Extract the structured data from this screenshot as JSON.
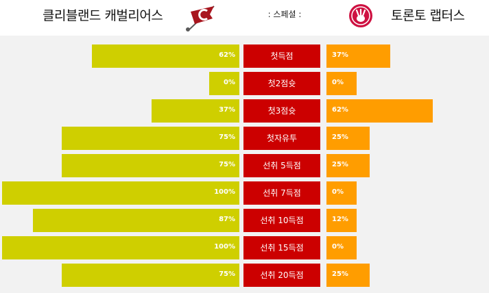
{
  "header": {
    "home_team": "클리블랜드 캐벌리어스",
    "away_team": "토론토 랩터스",
    "mid_label": ": 스페셜 :"
  },
  "colors": {
    "home_bar": "#cfcf00",
    "away_bar": "#ff9d00",
    "label_bg": "#cc0000"
  },
  "rows": [
    {
      "label": "첫득점",
      "home_pct": "62%",
      "away_pct": "37%",
      "home_value": 62,
      "away_value": 37
    },
    {
      "label": "첫2점슛",
      "home_pct": "0%",
      "away_pct": "0%",
      "home_value": 0,
      "away_value": 0
    },
    {
      "label": "첫3점슛",
      "home_pct": "37%",
      "away_pct": "62%",
      "home_value": 37,
      "away_value": 62
    },
    {
      "label": "첫자유투",
      "home_pct": "75%",
      "away_pct": "25%",
      "home_value": 75,
      "away_value": 25
    },
    {
      "label": "선취 5득점",
      "home_pct": "75%",
      "away_pct": "25%",
      "home_value": 75,
      "away_value": 25
    },
    {
      "label": "선취 7득점",
      "home_pct": "100%",
      "away_pct": "0%",
      "home_value": 100,
      "away_value": 0
    },
    {
      "label": "선취 10득점",
      "home_pct": "87%",
      "away_pct": "12%",
      "home_value": 87,
      "away_value": 12
    },
    {
      "label": "선취 15득점",
      "home_pct": "100%",
      "away_pct": "0%",
      "home_value": 100,
      "away_value": 0
    },
    {
      "label": "선취 20득점",
      "home_pct": "75%",
      "away_pct": "25%",
      "home_value": 75,
      "away_value": 25
    }
  ]
}
